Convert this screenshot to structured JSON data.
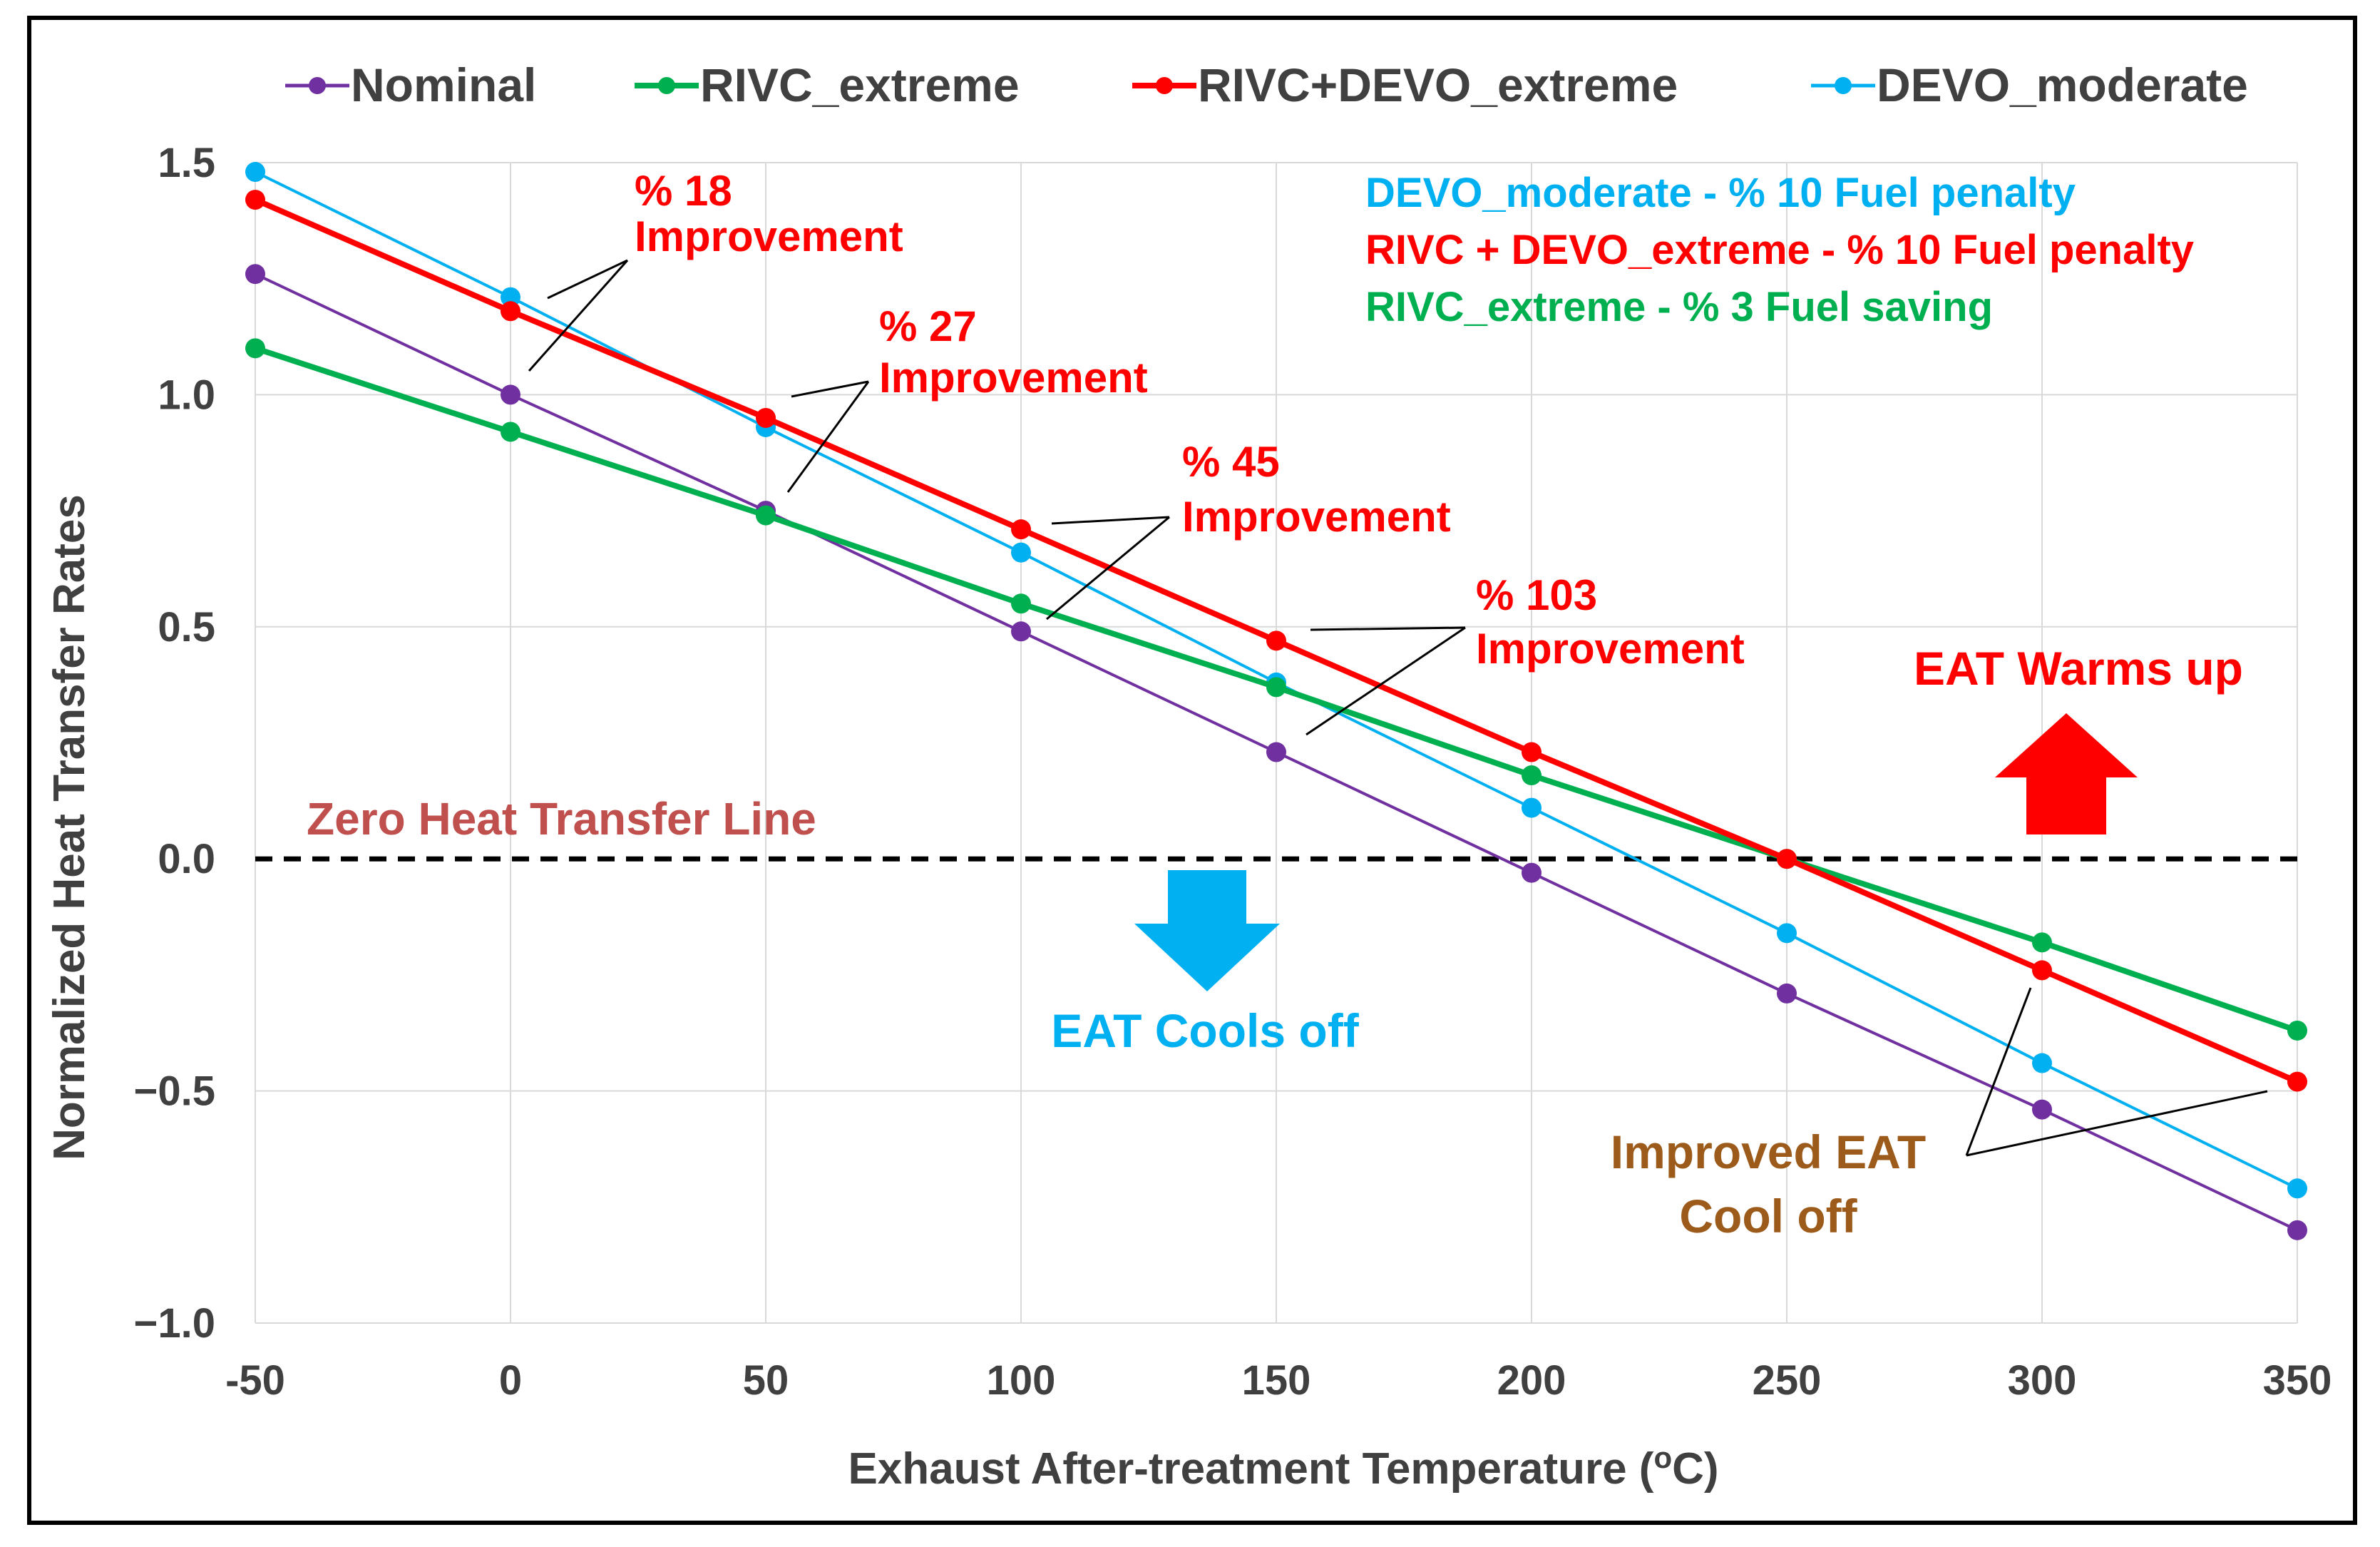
{
  "chart_data": {
    "type": "line",
    "title": "",
    "xlabel": "Exhaust After-treatment Temperature (°C)",
    "xlabel_parts": {
      "pre": "Exhaust After-treatment Temperature (",
      "sup": "o",
      "post": "C)"
    },
    "ylabel": "Normalized Heat Transfer Rates",
    "x": [
      -50,
      0,
      50,
      100,
      150,
      200,
      250,
      300,
      350
    ],
    "xlim": [
      -50,
      350
    ],
    "ylim": [
      -1.0,
      1.5
    ],
    "x_ticks": [
      "-50",
      "0",
      "50",
      "100",
      "150",
      "200",
      "250",
      "300",
      "350"
    ],
    "y_ticks": [
      "1.5",
      "1.0",
      "0.5",
      "0.0",
      "−0.5",
      "−1.0"
    ],
    "y_tick_values": [
      1.5,
      1.0,
      0.5,
      0.0,
      -0.5,
      -1.0
    ],
    "legend_position": "top",
    "series": [
      {
        "name": "Nominal",
        "color": "#7030a0",
        "values": [
          1.26,
          1.0,
          0.75,
          0.49,
          0.23,
          -0.03,
          -0.29,
          -0.54,
          -0.8
        ],
        "linewidth": "thin"
      },
      {
        "name": "RIVC_extreme",
        "color": "#00b050",
        "values": [
          1.1,
          0.92,
          0.74,
          0.55,
          0.37,
          0.18,
          0.0,
          -0.18,
          -0.37
        ],
        "linewidth": "thick"
      },
      {
        "name": "RIVC+DEVO_extreme",
        "color": "#ff0000",
        "values": [
          1.42,
          1.18,
          0.95,
          0.71,
          0.47,
          0.23,
          0.0,
          -0.24,
          -0.48
        ],
        "linewidth": "thick"
      },
      {
        "name": "DEVO_moderate",
        "color": "#00b0f0",
        "values": [
          1.48,
          1.21,
          0.93,
          0.66,
          0.38,
          0.11,
          -0.16,
          -0.44,
          -0.71
        ],
        "linewidth": "thin"
      }
    ],
    "fuel_notes": [
      {
        "text": "DEVO_moderate - % 10 Fuel penalty",
        "color": "#00b0f0"
      },
      {
        "text": "RIVC + DEVO_extreme - % 10 Fuel penalty",
        "color": "#ff0000"
      },
      {
        "text": "RIVC_extreme - % 3 Fuel saving",
        "color": "#00b050"
      }
    ],
    "improvement_labels": [
      {
        "percent": "% 18",
        "label": "Improvement"
      },
      {
        "percent": "% 27",
        "label": "Improvement"
      },
      {
        "percent": "% 45",
        "label": "Improvement"
      },
      {
        "percent": "% 103",
        "label": "Improvement"
      }
    ],
    "zero_line_label": "Zero Heat Transfer Line",
    "warm_label": "EAT Warms up",
    "cool_label": "EAT Cools off",
    "improved_cool_label": [
      "Improved EAT",
      "Cool off"
    ],
    "colors": {
      "warm": "#ff0000",
      "cool": "#00b0f0",
      "zero_line_label": "#c0504d",
      "improved": "#9c5b1a",
      "axis_text": "#404040"
    }
  }
}
